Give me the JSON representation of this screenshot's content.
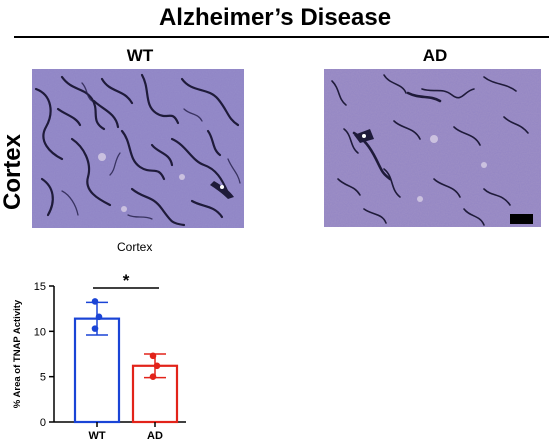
{
  "figure": {
    "title": "Alzheimer’s Disease",
    "row_label": "Cortex",
    "panels": [
      {
        "label": "WT"
      },
      {
        "label": "AD"
      }
    ]
  },
  "colors": {
    "tissue": "#8a84c8",
    "vessel": "#1f1b3a",
    "wt": "#1a44d6",
    "ad": "#e2231a"
  },
  "chart_data": {
    "type": "bar",
    "title": "Cortex",
    "ylabel": "% Area of TNAP Activity",
    "xlabel": "",
    "categories": [
      "WT",
      "AD"
    ],
    "values": [
      11.4,
      6.2
    ],
    "error": [
      1.8,
      1.3
    ],
    "points": [
      [
        13.3,
        11.6,
        10.3
      ],
      [
        7.3,
        6.2,
        5.0
      ]
    ],
    "ylim": [
      0,
      15
    ],
    "yticks": [
      0,
      5,
      10,
      15
    ],
    "significance": "*",
    "grid": false
  }
}
